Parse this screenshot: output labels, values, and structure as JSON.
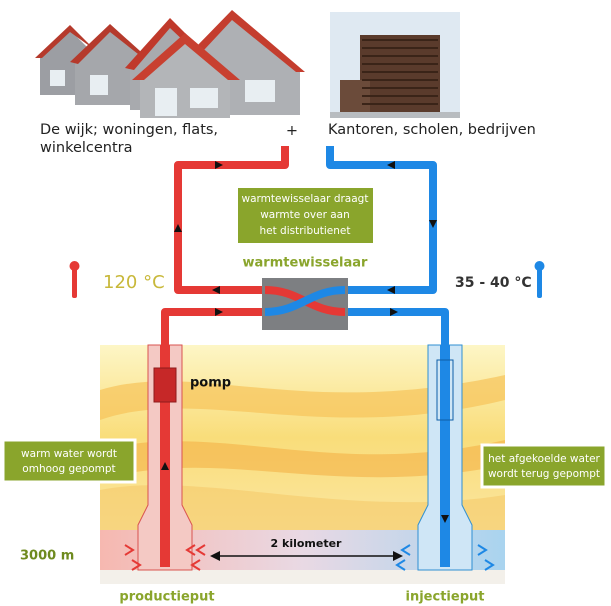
{
  "header": {
    "left_label": [
      "De wijk; woningen, flats,",
      "winkelcentra"
    ],
    "plus": "+",
    "right_label": "Kantoren, scholen, bedrijven"
  },
  "exchanger": {
    "note": [
      "warmtewisselaar draagt",
      "warmte over aan",
      "het distributienet"
    ],
    "title": "warmtewisselaar"
  },
  "temperatures": {
    "hot": "120 °C",
    "cold": "35 - 40 °C"
  },
  "wells": {
    "pump": "pomp",
    "left_note": [
      "warm water wordt",
      "omhoog gepompt"
    ],
    "right_note": [
      "het afgekoelde water",
      "wordt terug gepompt"
    ],
    "distance": "2 kilometer",
    "depth": "3000 m",
    "production": "productieput",
    "injection": "injectieput"
  }
}
